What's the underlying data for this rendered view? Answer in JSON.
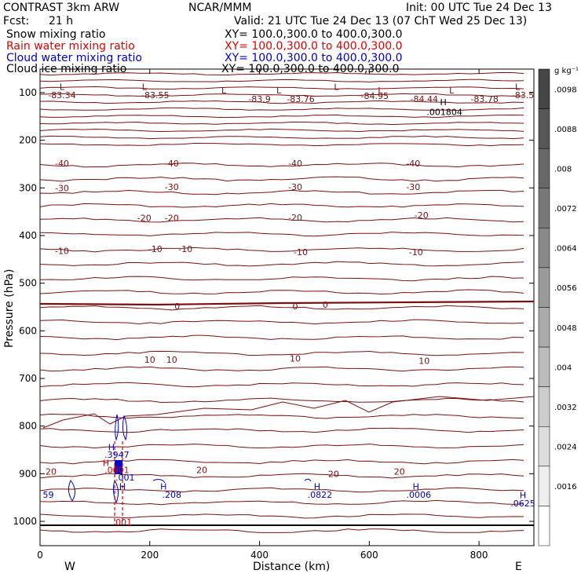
{
  "header": {
    "model": "CONTRAST  3km ARW",
    "org": "NCAR/MMM",
    "init": "Init: 00 UTC Tue 24 Dec 13",
    "fcst_label": "Fcst:",
    "fcst_value": "21 h",
    "valid": "Valid: 21 UTC Tue 24 Dec 13 (07 ChT Wed 25 Dec 13)",
    "fields": [
      {
        "name": "Snow mixing ratio",
        "xy": "XY= 100.0,300.0 to 400.0,300.0",
        "color": "#000000"
      },
      {
        "name": "Rain water mixing ratio",
        "xy": "XY= 100.0,300.0 to 400.0,300.0",
        "color": "#e00000"
      },
      {
        "name": "Cloud water mixing ratio",
        "xy": "XY= 100.0,300.0 to 400.0,300.0",
        "color": "#0000cc"
      },
      {
        "name": "Cloud ice mixing ratio",
        "xy": "XY= 100.0,300.0 to 400.0,300.0",
        "color": "#000000"
      }
    ]
  },
  "colors": {
    "temp_contour": "#7a1010",
    "cloud_water": "#0000cc",
    "rain": "#e00000",
    "ice": "#000000"
  },
  "chart_data": {
    "type": "contour-cross-section",
    "xlabel": "Distance (km)",
    "ylabel": "Pressure (hPa)",
    "xlim": [
      0,
      900
    ],
    "ylim": [
      1050,
      50
    ],
    "x_ticks": [
      0,
      200,
      400,
      600,
      800
    ],
    "y_ticks": [
      100,
      200,
      300,
      400,
      500,
      600,
      700,
      800,
      900,
      1000
    ],
    "west_label": "W",
    "east_label": "E",
    "temperature_labels": [
      {
        "x": 40,
        "p": 105,
        "text": "-83.34"
      },
      {
        "x": 210,
        "p": 105,
        "text": "-83.55"
      },
      {
        "x": 400,
        "p": 113,
        "text": "-83.9"
      },
      {
        "x": 475,
        "p": 113,
        "text": "-83.76"
      },
      {
        "x": 610,
        "p": 107,
        "text": "-84.95"
      },
      {
        "x": 700,
        "p": 113,
        "text": "-84.44"
      },
      {
        "x": 810,
        "p": 113,
        "text": "-83.78"
      },
      {
        "x": 880,
        "p": 105,
        "text": "-83.5"
      },
      {
        "x": 40,
        "p": 248,
        "text": "-40"
      },
      {
        "x": 240,
        "p": 248,
        "text": "-40"
      },
      {
        "x": 465,
        "p": 248,
        "text": "-40"
      },
      {
        "x": 680,
        "p": 248,
        "text": "-40"
      },
      {
        "x": 40,
        "p": 300,
        "text": "-30"
      },
      {
        "x": 240,
        "p": 298,
        "text": "-30"
      },
      {
        "x": 465,
        "p": 298,
        "text": "-30"
      },
      {
        "x": 680,
        "p": 298,
        "text": "-30"
      },
      {
        "x": 190,
        "p": 363,
        "text": "-20"
      },
      {
        "x": 240,
        "p": 363,
        "text": "-20"
      },
      {
        "x": 465,
        "p": 362,
        "text": "-20"
      },
      {
        "x": 695,
        "p": 357,
        "text": "-20"
      },
      {
        "x": 40,
        "p": 432,
        "text": "-10"
      },
      {
        "x": 210,
        "p": 428,
        "text": "-10"
      },
      {
        "x": 265,
        "p": 428,
        "text": "-10"
      },
      {
        "x": 475,
        "p": 435,
        "text": "-10"
      },
      {
        "x": 685,
        "p": 435,
        "text": "-10"
      },
      {
        "x": 250,
        "p": 548,
        "text": "0"
      },
      {
        "x": 465,
        "p": 548,
        "text": "0"
      },
      {
        "x": 520,
        "p": 545,
        "text": "0"
      },
      {
        "x": 200,
        "p": 660,
        "text": "10"
      },
      {
        "x": 240,
        "p": 660,
        "text": "10"
      },
      {
        "x": 465,
        "p": 658,
        "text": "10"
      },
      {
        "x": 700,
        "p": 663,
        "text": "10"
      },
      {
        "x": 20,
        "p": 895,
        "text": "20"
      },
      {
        "x": 295,
        "p": 892,
        "text": "20"
      },
      {
        "x": 535,
        "p": 900,
        "text": "20"
      },
      {
        "x": 655,
        "p": 895,
        "text": "20"
      }
    ],
    "L_markers": [
      {
        "x": 40,
        "p": 88,
        "text": "L"
      },
      {
        "x": 190,
        "p": 88,
        "text": "L"
      },
      {
        "x": 335,
        "p": 95,
        "text": "L"
      },
      {
        "x": 435,
        "p": 95,
        "text": "L"
      },
      {
        "x": 540,
        "p": 88,
        "text": "L"
      },
      {
        "x": 620,
        "p": 95,
        "text": "L"
      },
      {
        "x": 750,
        "p": 95,
        "text": "L"
      },
      {
        "x": 870,
        "p": 88,
        "text": "L"
      }
    ],
    "H_markers": [
      {
        "x": 735,
        "p": 120,
        "text": "H",
        "color": "#000000"
      },
      {
        "x": 130,
        "p": 844,
        "text": "H",
        "color": "#0000cc"
      },
      {
        "x": 120,
        "p": 877,
        "text": "H",
        "color": "#e00000"
      },
      {
        "x": 150,
        "p": 927,
        "text": "H",
        "color": "#0000cc"
      },
      {
        "x": 225,
        "p": 927,
        "text": "H",
        "color": "#0000cc"
      },
      {
        "x": 505,
        "p": 927,
        "text": "H",
        "color": "#0000cc"
      },
      {
        "x": 685,
        "p": 927,
        "text": "H",
        "color": "#0000cc"
      },
      {
        "x": 880,
        "p": 945,
        "text": "H",
        "color": "#0000cc"
      }
    ],
    "value_labels": [
      {
        "x": 737,
        "p": 140,
        "text": ".001804",
        "color": "#000000"
      },
      {
        "x": 140,
        "p": 860,
        "text": ".3947",
        "color": "#0000cc"
      },
      {
        "x": 140,
        "p": 892,
        "text": ".0001",
        "color": "#e00000"
      },
      {
        "x": 155,
        "p": 908,
        "text": ".001",
        "color": "#0000cc"
      },
      {
        "x": 15,
        "p": 944,
        "text": "59",
        "color": "#0000cc"
      },
      {
        "x": 240,
        "p": 944,
        "text": ".208",
        "color": "#0000cc"
      },
      {
        "x": 510,
        "p": 944,
        "text": ".0822",
        "color": "#0000cc"
      },
      {
        "x": 690,
        "p": 944,
        "text": ".0006",
        "color": "#0000cc"
      },
      {
        "x": 880,
        "p": 962,
        "text": ".0625",
        "color": "#0000cc"
      },
      {
        "x": 150,
        "p": 1002,
        "text": ".001",
        "color": "#e00000"
      }
    ],
    "colorbar": {
      "units": "g kg⁻¹",
      "levels": [
        ".0098",
        ".0088",
        ".008",
        ".0072",
        ".0064",
        ".0056",
        ".0048",
        ".004",
        ".0032",
        ".0024",
        ".0016"
      ]
    }
  }
}
